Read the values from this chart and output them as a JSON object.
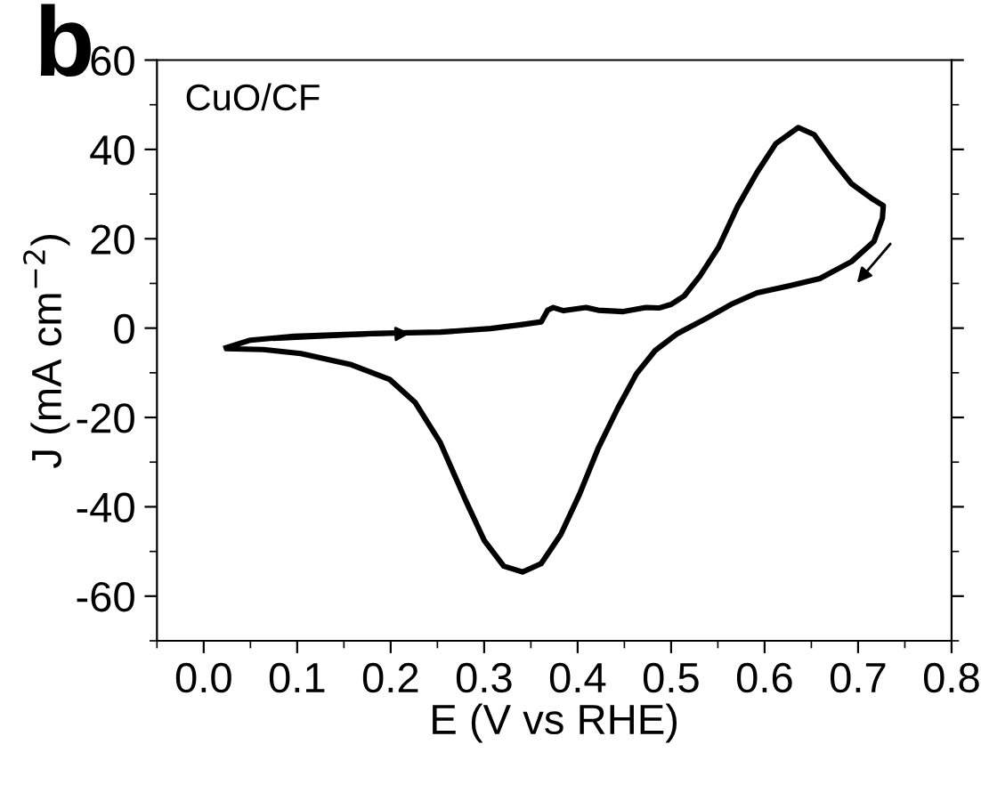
{
  "chart_data": {
    "type": "line",
    "xlabel": "E (V vs RHE)",
    "ylabel": "J (mA cm$^{−2}$)",
    "annotations": [
      "b",
      "CuO/CF"
    ],
    "xlim": [
      -0.05,
      0.8
    ],
    "xticks": [
      {
        "value": 0.0,
        "label": "0.0"
      },
      0.1,
      0.2,
      0.3,
      0.4,
      0.5,
      0.6,
      0.7,
      0.8
    ],
    "ylim": [
      -70,
      60
    ],
    "yticks": [
      -60,
      -40,
      -20,
      0,
      20,
      40,
      60
    ],
    "series": [
      {
        "color": "#000000",
        "x": [
          0.024,
          0.05,
          0.097,
          0.185,
          0.253,
          0.307,
          0.341,
          0.361,
          0.368,
          0.374,
          0.385,
          0.409,
          0.422,
          0.449,
          0.473,
          0.487,
          0.5,
          0.514,
          0.531,
          0.551,
          0.571,
          0.592,
          0.612,
          0.636,
          0.653,
          0.673,
          0.693,
          0.714,
          0.727,
          0.726,
          0.717,
          0.693,
          0.659,
          0.625,
          0.592,
          0.564,
          0.537,
          0.507,
          0.483,
          0.463,
          0.443,
          0.422,
          0.402,
          0.382,
          0.361,
          0.341,
          0.321,
          0.3,
          0.28,
          0.253,
          0.226,
          0.199,
          0.158,
          0.104,
          0.064,
          0.026
        ],
        "values": [
          -4.4,
          -2.7,
          -1.8,
          -1.2,
          -0.9,
          -0.1,
          0.8,
          1.4,
          4.0,
          4.6,
          3.9,
          4.6,
          4.0,
          3.7,
          4.6,
          4.5,
          5.3,
          7.2,
          11.7,
          18.2,
          27.2,
          34.9,
          41.3,
          44.9,
          43.3,
          37.5,
          32.3,
          29.1,
          27.4,
          24.6,
          19.4,
          14.9,
          11.1,
          9.4,
          7.9,
          5.3,
          2.1,
          -1.2,
          -5.0,
          -10.2,
          -17.9,
          -26.9,
          -37.2,
          -46.2,
          -52.7,
          -54.6,
          -53.3,
          -47.5,
          -38.5,
          -25.6,
          -16.6,
          -11.5,
          -8.2,
          -5.7,
          -4.8,
          -4.6
        ]
      }
    ],
    "marker": "none",
    "line_style": "solid",
    "grid": false,
    "legend": false
  }
}
